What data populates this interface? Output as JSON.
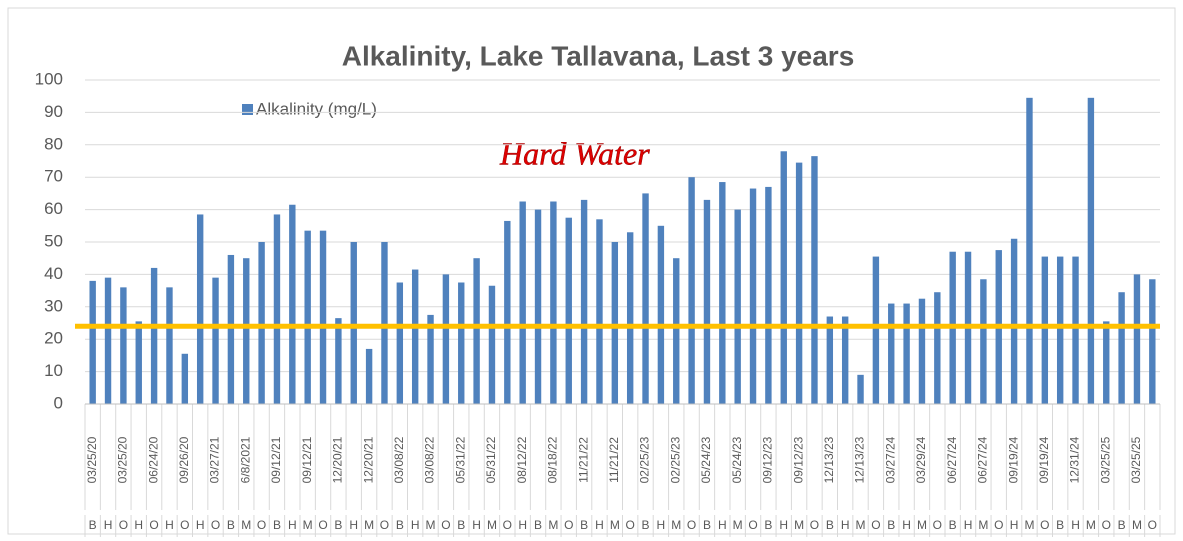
{
  "chart_data": {
    "type": "bar",
    "title": "Alkalinity, Lake Tallavana, Last 3 years",
    "annotation": "Hard Water",
    "threshold": 24,
    "threshold_color": "#ffc000",
    "categories": [
      "03/25/20",
      null,
      "03/25/20",
      null,
      "06/24/20",
      null,
      "09/26/20",
      null,
      "03/27/21",
      null,
      "6/8/2021",
      null,
      "09/12/21",
      null,
      "09/12/21",
      null,
      "12/20/21",
      null,
      "12/20/21",
      null,
      "03/08/22",
      null,
      "03/08/22",
      null,
      "05/31/22",
      null,
      "05/31/22",
      null,
      "08/12/22",
      null,
      "08/18/22",
      null,
      "11/21/22",
      null,
      "11/21/22",
      null,
      "02/25/23",
      null,
      "02/25/23",
      null,
      "05/24/23",
      null,
      "05/24/23",
      null,
      "09/12/23",
      null,
      "09/12/23",
      null,
      "12/13/23",
      null,
      "12/13/23",
      null,
      "03/27/24",
      null,
      "03/29/24",
      null,
      "06/27/24",
      null,
      "06/27/24",
      null,
      "09/19/24",
      null,
      "09/19/24",
      null,
      "12/31/24",
      null,
      "03/25/25",
      null,
      "03/25/25",
      null
    ],
    "site_codes": [
      "B",
      "H",
      "O",
      "H",
      "O",
      "H",
      "O",
      "H",
      "O",
      "B",
      "M",
      "O",
      "B",
      "H",
      "M",
      "O",
      "B",
      "H",
      "M",
      "O",
      "B",
      "H",
      "M",
      "O",
      "B",
      "H",
      "M",
      "O",
      "H",
      "B",
      "M",
      "O",
      "B",
      "H",
      "M",
      "O",
      "B",
      "H",
      "M",
      "O",
      "B",
      "H",
      "M",
      "O",
      "B",
      "H",
      "M",
      "O",
      "B",
      "H",
      "M",
      "O",
      "B",
      "H",
      "M",
      "O",
      "B",
      "H",
      "M",
      "O",
      "H",
      "M",
      "O",
      "B",
      "H",
      "M",
      "O",
      "B",
      "M",
      "O"
    ],
    "series": [
      {
        "name": "Alkalinity (mg/L)",
        "color": "#4f81bd",
        "values": [
          38,
          39,
          36,
          25.5,
          42,
          36,
          15.5,
          58.5,
          39,
          46,
          45,
          50,
          58.5,
          61.5,
          53.5,
          53.5,
          26.5,
          50,
          17,
          50,
          37.5,
          41.5,
          27.5,
          40,
          37.5,
          45,
          36.5,
          56.5,
          62.5,
          60,
          62.5,
          57.5,
          63,
          57,
          50,
          53,
          65,
          55,
          45,
          70,
          63,
          68.5,
          60,
          66.5,
          67,
          78,
          74.5,
          76.5,
          27,
          27,
          9,
          45.5,
          31,
          31,
          32.5,
          34.5,
          47,
          47,
          38.5,
          47.5,
          51,
          94.5,
          45.5,
          45.5,
          45.5,
          94.5,
          25.5,
          34.5,
          40,
          38.5
        ]
      }
    ],
    "ylim": [
      0,
      100
    ],
    "yticks": [
      0,
      10,
      20,
      30,
      40,
      50,
      60,
      70,
      80,
      90,
      100
    ],
    "grid": true
  }
}
